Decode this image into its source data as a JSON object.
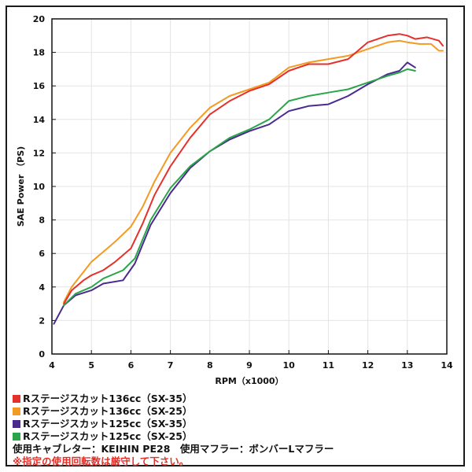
{
  "chart_data": {
    "type": "line",
    "title": "",
    "xlabel": "RPM（x1000）",
    "ylabel": "SAE Power （PS)",
    "xlim": [
      4,
      14
    ],
    "ylim": [
      0,
      20
    ],
    "x_ticks": [
      "4",
      "5",
      "6",
      "7",
      "8",
      "9",
      "10",
      "11",
      "12",
      "13",
      "14"
    ],
    "y_ticks": [
      "0",
      "2",
      "4",
      "6",
      "8",
      "10",
      "12",
      "14",
      "16",
      "18",
      "20"
    ],
    "grid": true,
    "series": [
      {
        "name": "Rステージスカット136cc（SX-35）",
        "color": "#e3312b",
        "x": [
          4.3,
          4.5,
          4.8,
          5.0,
          5.3,
          5.6,
          6.0,
          6.3,
          6.6,
          7.0,
          7.5,
          8.0,
          8.5,
          9.0,
          9.5,
          10.0,
          10.5,
          11.0,
          11.5,
          12.0,
          12.5,
          12.8,
          13.0,
          13.2,
          13.5,
          13.8,
          13.9
        ],
        "y": [
          3.0,
          3.8,
          4.4,
          4.7,
          5.0,
          5.5,
          6.3,
          7.8,
          9.5,
          11.2,
          12.9,
          14.3,
          15.1,
          15.7,
          16.1,
          16.9,
          17.3,
          17.3,
          17.6,
          18.6,
          19.0,
          19.1,
          19.0,
          18.8,
          18.9,
          18.7,
          18.4
        ]
      },
      {
        "name": "Rステージスカット136cc（SX-25）",
        "color": "#f39a23",
        "x": [
          4.3,
          4.5,
          4.8,
          5.0,
          5.3,
          5.6,
          6.0,
          6.3,
          6.6,
          7.0,
          7.5,
          8.0,
          8.5,
          9.0,
          9.5,
          10.0,
          10.5,
          11.0,
          11.5,
          12.0,
          12.5,
          12.8,
          13.0,
          13.3,
          13.6,
          13.8,
          13.9
        ],
        "y": [
          3.1,
          4.0,
          4.9,
          5.5,
          6.1,
          6.7,
          7.6,
          8.8,
          10.3,
          12.0,
          13.5,
          14.7,
          15.4,
          15.8,
          16.2,
          17.1,
          17.4,
          17.6,
          17.8,
          18.2,
          18.6,
          18.7,
          18.6,
          18.5,
          18.5,
          18.1,
          18.1
        ]
      },
      {
        "name": "Rステージスカット125cc（SX-35）",
        "color": "#4b2a8f",
        "x": [
          4.05,
          4.3,
          4.6,
          5.0,
          5.3,
          5.8,
          6.1,
          6.5,
          7.0,
          7.5,
          8.0,
          8.5,
          9.0,
          9.5,
          10.0,
          10.5,
          11.0,
          11.5,
          12.0,
          12.5,
          12.8,
          13.0,
          13.2
        ],
        "y": [
          1.8,
          2.9,
          3.5,
          3.8,
          4.2,
          4.4,
          5.4,
          7.7,
          9.6,
          11.1,
          12.1,
          12.8,
          13.3,
          13.7,
          14.5,
          14.8,
          14.9,
          15.4,
          16.1,
          16.7,
          16.9,
          17.4,
          17.1
        ]
      },
      {
        "name": "Rステージスカット125cc（SX-25）",
        "color": "#2aa549",
        "x": [
          4.3,
          4.6,
          5.0,
          5.3,
          5.8,
          6.1,
          6.5,
          7.0,
          7.5,
          8.0,
          8.5,
          9.0,
          9.5,
          10.0,
          10.5,
          11.0,
          11.5,
          12.0,
          12.5,
          12.8,
          13.0,
          13.2
        ],
        "y": [
          2.9,
          3.6,
          4.0,
          4.5,
          5.0,
          5.7,
          8.0,
          9.9,
          11.2,
          12.1,
          12.9,
          13.4,
          14.0,
          15.1,
          15.4,
          15.6,
          15.8,
          16.2,
          16.6,
          16.8,
          17.0,
          16.9
        ]
      }
    ]
  },
  "notes": {
    "setup": "使用キャブレター：KEIHIN PE28　使用マフラー：ボンバーLマフラー",
    "warning": "※指定の使用回転数は厳守して下さい。"
  }
}
